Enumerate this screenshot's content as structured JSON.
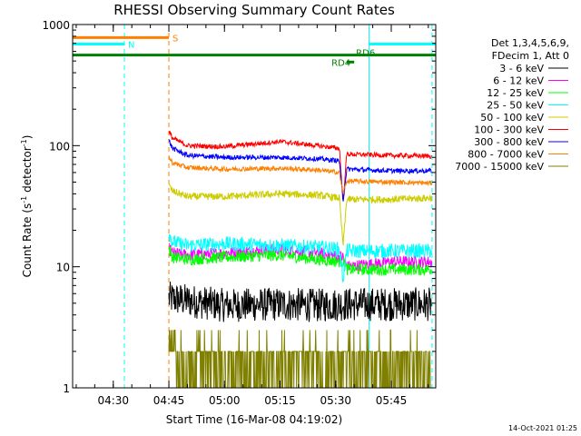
{
  "chart_data": {
    "type": "line",
    "title": "RHESSI Observing Summary Count Rates",
    "xlabel": "Start Time (16-Mar-08 04:19:02)",
    "ylabel": "Count Rate (s",
    "ylabel_sup1": "-1",
    "ylabel_mid": " detector",
    "ylabel_sup2": "-1",
    "ylabel_end": ")",
    "y_scale": "log",
    "ylim": [
      1,
      1000
    ],
    "xlim": [
      "04:19:02",
      "05:57:00"
    ],
    "x_ticks": [
      "04:30",
      "04:45",
      "05:00",
      "05:15",
      "05:30",
      "05:45"
    ],
    "y_ticks": [
      "1",
      "10",
      "100",
      "1000"
    ],
    "legend_header": [
      "Det 1,3,4,5,6,9,",
      "FDecim 1, Att 0"
    ],
    "legend_placement": "right",
    "timestamp": "14-Oct-2021 01:25",
    "series": [
      {
        "name": "3 - 6 keV",
        "color": "#000000",
        "x": [
          "04:45",
          "05:00",
          "05:15",
          "05:25",
          "05:32",
          "05:33",
          "05:45",
          "05:56"
        ],
        "values": [
          5.5,
          4.8,
          4.9,
          4.8,
          4.9,
          4.9,
          4.9,
          4.9
        ]
      },
      {
        "name": "6 - 12 keV",
        "color": "#ff00ff",
        "x": [
          "04:45",
          "04:46",
          "04:50",
          "05:00",
          "05:15",
          "05:25",
          "05:32",
          "05:33",
          "05:45",
          "05:56"
        ],
        "values": [
          14,
          13,
          12.5,
          13,
          14,
          13,
          12,
          10,
          11,
          11
        ]
      },
      {
        "name": "12 - 25 keV",
        "color": "#00ff00",
        "x": [
          "04:45",
          "04:46",
          "04:50",
          "05:00",
          "05:15",
          "05:25",
          "05:32",
          "05:33",
          "05:45",
          "05:56"
        ],
        "values": [
          14,
          12,
          11.5,
          12,
          12.5,
          11.5,
          11,
          9.5,
          9.5,
          9.5
        ]
      },
      {
        "name": "25 - 50 keV",
        "color": "#00ffff",
        "x": [
          "04:45",
          "04:46",
          "04:50",
          "05:00",
          "05:15",
          "05:25",
          "05:31",
          "05:32",
          "05:33",
          "05:45",
          "05:56"
        ],
        "values": [
          19,
          16,
          15,
          15.5,
          15,
          14.5,
          14,
          8,
          13.5,
          13.5,
          13.5
        ]
      },
      {
        "name": "50 - 100 keV",
        "color": "#cccc00",
        "x": [
          "04:45",
          "04:46",
          "04:50",
          "05:00",
          "05:15",
          "05:25",
          "05:31",
          "05:32",
          "05:33",
          "05:45",
          "05:56"
        ],
        "values": [
          47,
          42,
          38,
          38,
          40,
          39,
          37,
          15,
          36,
          36,
          37
        ]
      },
      {
        "name": "100 - 300 keV",
        "color": "#ff0000",
        "x": [
          "04:45",
          "04:46",
          "04:50",
          "05:00",
          "05:15",
          "05:25",
          "05:31",
          "05:32",
          "05:33",
          "05:45",
          "05:56"
        ],
        "values": [
          130,
          115,
          100,
          98,
          108,
          100,
          95,
          35,
          85,
          83,
          82
        ]
      },
      {
        "name": "300 - 800 keV",
        "color": "#0000ff",
        "x": [
          "04:45",
          "04:46",
          "04:50",
          "05:00",
          "05:15",
          "05:25",
          "05:31",
          "05:32",
          "05:33",
          "05:45",
          "05:56"
        ],
        "values": [
          110,
          95,
          83,
          80,
          80,
          78,
          75,
          35,
          64,
          62,
          62
        ]
      },
      {
        "name": "800 - 7000 keV",
        "color": "#ff8000",
        "x": [
          "04:45",
          "04:46",
          "04:50",
          "05:00",
          "05:15",
          "05:25",
          "05:31",
          "05:32",
          "05:33",
          "05:45",
          "05:56"
        ],
        "values": [
          80,
          72,
          66,
          64,
          65,
          63,
          60,
          40,
          51,
          50,
          49
        ]
      },
      {
        "name": "7000 - 15000 keV",
        "color": "#808000",
        "x": [
          "04:45",
          "04:47",
          "05:00",
          "05:15",
          "05:25",
          "05:32",
          "05:35",
          "05:45",
          "05:56"
        ],
        "values": [
          2.0,
          2.0,
          2.0,
          2.0,
          2.0,
          2.0,
          1.0,
          2.0,
          2.0
        ]
      }
    ],
    "annotations": [
      {
        "label": "S",
        "color": "#ff8000",
        "x_start": "04:19:02",
        "x_end": "04:45:00",
        "y": 780
      },
      {
        "label": "N",
        "color": "#00ffff",
        "x_start": "04:19:02",
        "x_end": "04:33:00",
        "y": 690
      },
      {
        "label": "",
        "color": "#00ffff",
        "x_start": "05:39:00",
        "x_end": "05:57:00",
        "y": 690
      },
      {
        "label": "RD6",
        "color": "#008000",
        "x_start": "04:19:02",
        "x_end": "05:57:00",
        "y": 560
      },
      {
        "label": "RD4",
        "color": "#008000",
        "x_start": "05:33:00",
        "x_end": "05:35:00",
        "y": 490
      }
    ],
    "vlines": [
      {
        "color": "#00ffff",
        "style": "solid",
        "x": "04:19:02"
      },
      {
        "color": "#00ffff",
        "style": "dashed",
        "x": "04:33:00"
      },
      {
        "color": "#ff8000",
        "style": "dashed",
        "x": "04:45:00"
      },
      {
        "color": "#00ffff",
        "style": "solid",
        "x": "05:39:00"
      },
      {
        "color": "#00ffff",
        "style": "dashed",
        "x": "05:56:00"
      }
    ]
  }
}
